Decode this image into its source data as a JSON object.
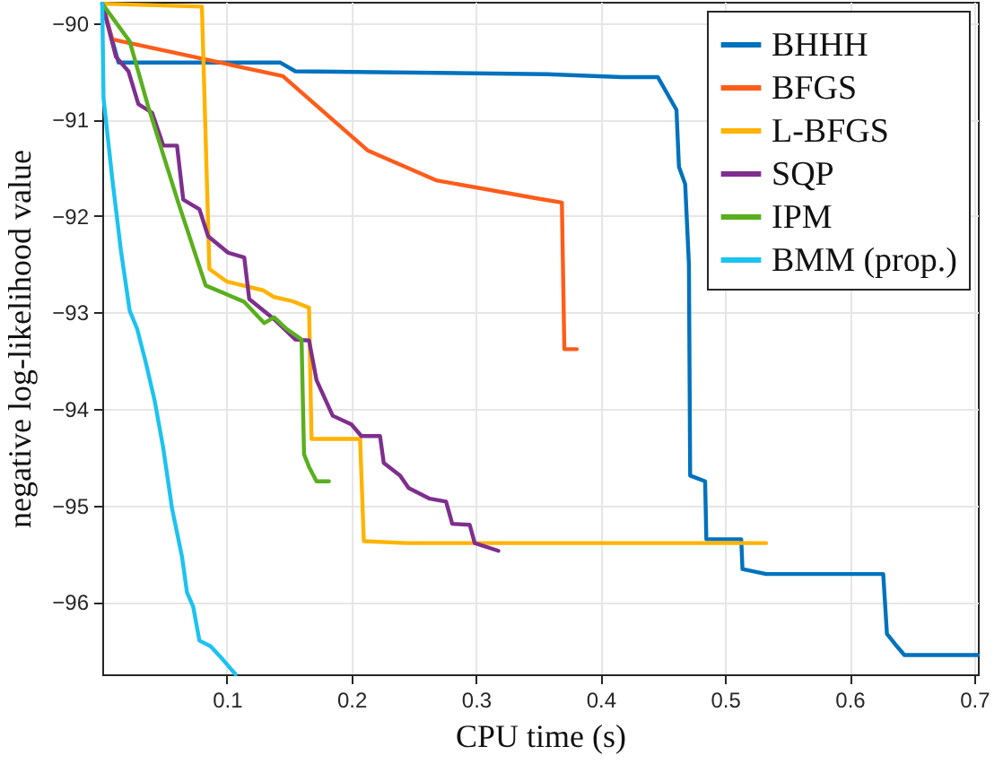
{
  "chart_data": {
    "type": "line",
    "xlabel": "CPU time (s)",
    "ylabel": "negative log-likelihood value",
    "xlim": [
      0,
      0.703
    ],
    "ylim": [
      -96.75,
      -89.78
    ],
    "xticks": [
      0.1,
      0.2,
      0.3,
      0.4,
      0.5,
      0.6,
      0.7
    ],
    "yticks": [
      -90,
      -91,
      -92,
      -93,
      -94,
      -95,
      -96
    ],
    "grid": true,
    "legend": "top right",
    "marker": "none",
    "line_style": "solid",
    "series": [
      {
        "name": "BHHH",
        "color": "#0072bd",
        "x": [
          0,
          0.013,
          0.143,
          0.155,
          0.357,
          0.417,
          0.446,
          0.461,
          0.463,
          0.468,
          0.471,
          0.472,
          0.484,
          0.485,
          0.513,
          0.514,
          0.533,
          0.627,
          0.63,
          0.638,
          0.644,
          0.703
        ],
        "values": [
          -89.8,
          -90.41,
          -90.41,
          -90.5,
          -90.53,
          -90.56,
          -90.56,
          -90.9,
          -91.49,
          -91.67,
          -92.5,
          -94.69,
          -94.75,
          -95.35,
          -95.35,
          -95.66,
          -95.71,
          -95.71,
          -96.33,
          -96.46,
          -96.55,
          -96.55
        ]
      },
      {
        "name": "BFGS",
        "color": "#ff5c1a",
        "x": [
          0,
          0.008,
          0.145,
          0.213,
          0.268,
          0.35,
          0.369,
          0.371,
          0.381
        ],
        "values": [
          -89.8,
          -90.17,
          -90.55,
          -91.32,
          -91.63,
          -91.82,
          -91.86,
          -93.38,
          -93.38
        ]
      },
      {
        "name": "L-BFGS",
        "color": "#ffb300",
        "x": [
          0,
          0.08,
          0.086,
          0.1,
          0.129,
          0.138,
          0.152,
          0.166,
          0.168,
          0.207,
          0.21,
          0.244,
          0.533
        ],
        "values": [
          -89.8,
          -89.83,
          -92.55,
          -92.68,
          -92.77,
          -92.84,
          -92.88,
          -92.95,
          -94.31,
          -94.31,
          -95.37,
          -95.39,
          -95.39
        ]
      },
      {
        "name": "SQP",
        "color": "#7e2f8e",
        "x": [
          0,
          0.011,
          0.021,
          0.029,
          0.04,
          0.049,
          0.06,
          0.065,
          0.078,
          0.085,
          0.101,
          0.114,
          0.118,
          0.138,
          0.155,
          0.166,
          0.172,
          0.185,
          0.2,
          0.208,
          0.223,
          0.226,
          0.239,
          0.246,
          0.263,
          0.276,
          0.281,
          0.295,
          0.299,
          0.318
        ],
        "values": [
          -89.8,
          -90.35,
          -90.5,
          -90.84,
          -90.93,
          -91.27,
          -91.27,
          -91.83,
          -91.93,
          -92.21,
          -92.38,
          -92.43,
          -92.86,
          -93.07,
          -93.28,
          -93.29,
          -93.7,
          -94.07,
          -94.16,
          -94.28,
          -94.28,
          -94.56,
          -94.69,
          -94.82,
          -94.93,
          -94.96,
          -95.19,
          -95.2,
          -95.39,
          -95.47
        ]
      },
      {
        "name": "IPM",
        "color": "#5aaf1e",
        "x": [
          0,
          0.022,
          0.037,
          0.061,
          0.083,
          0.114,
          0.13,
          0.138,
          0.148,
          0.16,
          0.162,
          0.166,
          0.172,
          0.182
        ],
        "values": [
          -89.8,
          -90.19,
          -90.87,
          -91.86,
          -92.72,
          -92.89,
          -93.11,
          -93.05,
          -93.17,
          -93.28,
          -94.47,
          -94.6,
          -94.75,
          -94.75
        ]
      },
      {
        "name": "BMM (prop.)",
        "color": "#1cc3f0",
        "x": [
          0,
          0.001,
          0.008,
          0.015,
          0.022,
          0.028,
          0.035,
          0.042,
          0.049,
          0.056,
          0.064,
          0.068,
          0.073,
          0.078,
          0.087,
          0.097,
          0.107
        ],
        "values": [
          -89.8,
          -90.78,
          -91.61,
          -92.36,
          -92.98,
          -93.17,
          -93.52,
          -93.91,
          -94.41,
          -95.03,
          -95.53,
          -95.9,
          -96.05,
          -96.4,
          -96.46,
          -96.6,
          -96.75
        ]
      }
    ]
  }
}
